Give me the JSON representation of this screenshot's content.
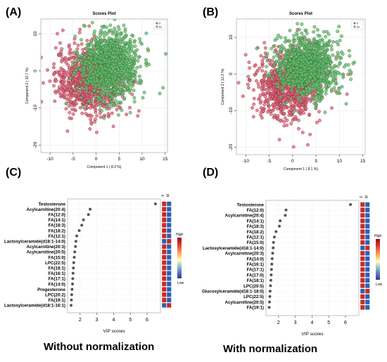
{
  "captions": {
    "left": "Without normalization",
    "right": "With normalization"
  },
  "colors": {
    "F": "#c2253f",
    "M": "#2f9a44",
    "low": "#2c5fb6",
    "high": "#c62b26",
    "dot": "#555555"
  },
  "chart_data": [
    {
      "panel": "(A)",
      "type": "scatter",
      "title": "Scores Plot",
      "xlabel": "Component 1 ( 8.3 %)",
      "ylabel": "Component 2 ( 10.7 %)",
      "xticks": [
        -10,
        -5,
        0,
        5,
        10,
        15
      ],
      "yticks": [
        -20,
        -10,
        0,
        10
      ],
      "xlim": [
        -12,
        15.5
      ],
      "ylim": [
        -22,
        14
      ],
      "legend": {
        "position": "top-right",
        "entries": [
          "F",
          "M"
        ]
      },
      "series": [
        {
          "name": "F",
          "center": [
            -1.5,
            -2.5
          ],
          "spread": [
            3.6,
            4.6
          ],
          "points": 900
        },
        {
          "name": "M",
          "center": [
            3.0,
            1.5
          ],
          "spread": [
            3.2,
            4.4
          ],
          "points": 1100
        }
      ]
    },
    {
      "panel": "(B)",
      "type": "scatter",
      "title": "Scores Plot",
      "xlabel": "Component 1 ( 8.1 %)",
      "ylabel": "Component 2 ( 12.3 %)",
      "xticks": [
        -10,
        -5,
        0,
        5,
        10,
        15
      ],
      "yticks": [
        -20,
        -10,
        0,
        10
      ],
      "xlim": [
        -12,
        15.5
      ],
      "ylim": [
        -22,
        15
      ],
      "legend": {
        "position": "top-right",
        "entries": [
          "F",
          "M"
        ]
      },
      "series": [
        {
          "name": "F",
          "center": [
            -1.0,
            -3.0
          ],
          "spread": [
            3.4,
            4.6
          ],
          "points": 900
        },
        {
          "name": "M",
          "center": [
            3.2,
            2.0
          ],
          "spread": [
            3.3,
            4.2
          ],
          "points": 1100
        }
      ]
    },
    {
      "panel": "(C)",
      "type": "dot",
      "xlabel": "VIP scores",
      "xticks": [
        2,
        3,
        4,
        5,
        6
      ],
      "xlim": [
        1.25,
        6.8
      ],
      "column_labels": [
        "F",
        "M"
      ],
      "scale_labels": [
        "High",
        "Low"
      ],
      "items": [
        {
          "label": "Testosterone",
          "value": 6.5,
          "high": "F"
        },
        {
          "label": "Acylcarnitine(20:4)",
          "value": 2.6,
          "high": "F"
        },
        {
          "label": "FA(12:0)",
          "value": 2.5,
          "high": "F"
        },
        {
          "label": "FA(14:1)",
          "value": 2.2,
          "high": "F"
        },
        {
          "label": "FA(18:3)",
          "value": 2.1,
          "high": "F"
        },
        {
          "label": "FA(18:2)",
          "value": 1.95,
          "high": "F"
        },
        {
          "label": "FA(12:1)",
          "value": 1.8,
          "high": "F"
        },
        {
          "label": "Lactosylceramide(d18:1-14:0)",
          "value": 1.75,
          "high": "M"
        },
        {
          "label": "Acylcarnitine(20:3)",
          "value": 1.72,
          "high": "F"
        },
        {
          "label": "Acylcarnitine(20:5)",
          "value": 1.68,
          "high": "F"
        },
        {
          "label": "FA(15:0)",
          "value": 1.65,
          "high": "F"
        },
        {
          "label": "LPC(22:5)",
          "value": 1.62,
          "high": "F"
        },
        {
          "label": "FA(18:1)",
          "value": 1.6,
          "high": "F"
        },
        {
          "label": "FA(16:1)",
          "value": 1.58,
          "high": "F"
        },
        {
          "label": "FA(17:1)",
          "value": 1.56,
          "high": "F"
        },
        {
          "label": "FA(14:0)",
          "value": 1.55,
          "high": "F"
        },
        {
          "label": "Progesterone",
          "value": 1.52,
          "high": "F"
        },
        {
          "label": "LPC(20:2)",
          "value": 1.5,
          "high": "F"
        },
        {
          "label": "FA(19:1)",
          "value": 1.48,
          "high": "F"
        },
        {
          "label": "Lactosylceramide(d18:1-16:1)",
          "value": 1.46,
          "high": "M"
        }
      ]
    },
    {
      "panel": "(D)",
      "type": "dot",
      "xlabel": "VIP scores",
      "xticks": [
        2,
        3,
        4,
        5,
        6
      ],
      "xlim": [
        1.25,
        6.8
      ],
      "column_labels": [
        "F",
        "M"
      ],
      "scale_labels": [
        "High",
        "Low"
      ],
      "items": [
        {
          "label": "Testosterone",
          "value": 6.3,
          "high": "F"
        },
        {
          "label": "FA(12:0)",
          "value": 2.45,
          "high": "F"
        },
        {
          "label": "Acylcarnitine(20:4)",
          "value": 2.4,
          "high": "F"
        },
        {
          "label": "FA(14:1)",
          "value": 2.1,
          "high": "F"
        },
        {
          "label": "FA(18:3)",
          "value": 2.05,
          "high": "F"
        },
        {
          "label": "FA(18:2)",
          "value": 1.85,
          "high": "F"
        },
        {
          "label": "FA(12:1)",
          "value": 1.75,
          "high": "F"
        },
        {
          "label": "FA(15:0)",
          "value": 1.7,
          "high": "F"
        },
        {
          "label": "Lactosylceramide(d18:1-14:0)",
          "value": 1.68,
          "high": "M"
        },
        {
          "label": "Acylcarnitine(20:3)",
          "value": 1.65,
          "high": "F"
        },
        {
          "label": "FA(14:0)",
          "value": 1.62,
          "high": "F"
        },
        {
          "label": "FA(16:1)",
          "value": 1.6,
          "high": "F"
        },
        {
          "label": "FA(17:1)",
          "value": 1.58,
          "high": "F"
        },
        {
          "label": "FA(17:0)",
          "value": 1.56,
          "high": "F"
        },
        {
          "label": "FA(18:1)",
          "value": 1.54,
          "high": "F"
        },
        {
          "label": "LPC(20:5)",
          "value": 1.52,
          "high": "F"
        },
        {
          "label": "Glucosylceramide(d18:1-18:0)",
          "value": 1.5,
          "high": "M"
        },
        {
          "label": "LPC(22:5)",
          "value": 1.48,
          "high": "F"
        },
        {
          "label": "Acylcarnitine(20:5)",
          "value": 1.46,
          "high": "F"
        },
        {
          "label": "FA(19:1)",
          "value": 1.44,
          "high": "F"
        }
      ]
    }
  ]
}
